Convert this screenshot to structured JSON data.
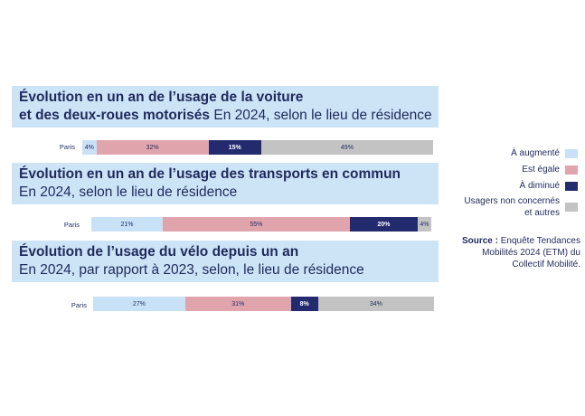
{
  "colors": {
    "augmente": "#c8e1f6",
    "egale": "#e0a4ad",
    "diminue": "#232b6e",
    "non_concernes": "#c3c3c3",
    "title_band": "#cde3f6",
    "text": "#1f2a5c"
  },
  "sections": [
    {
      "title_bold_1": "Évolution en un an de l’usage de la voiture",
      "title_bold_2": "et des deux-roues motorisés",
      "title_normal_2": " En 2024, selon le lieu de résidence"
    },
    {
      "title_bold_1": "Évolution en un an de l’usage des transports en commun",
      "title_normal_2": "En 2024, selon le lieu de résidence"
    },
    {
      "title_bold_1": "Évolution de l’usage du vélo depuis un an",
      "title_normal_2": "En 2024, par rapport à 2023, selon, le lieu de résidence"
    }
  ],
  "chart_data": [
    {
      "type": "bar",
      "stacked": true,
      "orientation": "horizontal",
      "categories": [
        "Paris"
      ],
      "series": [
        {
          "name": "À augmenté",
          "values": [
            4
          ],
          "label": "4%"
        },
        {
          "name": "Est égale",
          "values": [
            32
          ],
          "label": "32%"
        },
        {
          "name": "À diminué",
          "values": [
            15
          ],
          "label": "15%"
        },
        {
          "name": "Usagers non concernés et autres",
          "values": [
            49
          ],
          "label": "49%"
        }
      ]
    },
    {
      "type": "bar",
      "stacked": true,
      "orientation": "horizontal",
      "categories": [
        "Paris"
      ],
      "series": [
        {
          "name": "À augmenté",
          "values": [
            21
          ],
          "label": "21%"
        },
        {
          "name": "Est égale",
          "values": [
            55
          ],
          "label": "55%"
        },
        {
          "name": "À diminué",
          "values": [
            20
          ],
          "label": "20%"
        },
        {
          "name": "Usagers non concernés et autres",
          "values": [
            4
          ],
          "label": "4%"
        }
      ]
    },
    {
      "type": "bar",
      "stacked": true,
      "orientation": "horizontal",
      "categories": [
        "Paris"
      ],
      "series": [
        {
          "name": "À augmenté",
          "values": [
            27
          ],
          "label": "27%"
        },
        {
          "name": "Est égale",
          "values": [
            31
          ],
          "label": "31%"
        },
        {
          "name": "À diminué",
          "values": [
            8
          ],
          "label": "8%"
        },
        {
          "name": "Usagers non concernés et autres",
          "values": [
            34
          ],
          "label": "34%"
        }
      ]
    }
  ],
  "legend": [
    {
      "label": "À augmenté",
      "color": "#c8e1f6"
    },
    {
      "label": "Est égale",
      "color": "#e0a4ad"
    },
    {
      "label": "À diminué",
      "color": "#232b6e"
    },
    {
      "label": "Usagers non concernés et autres",
      "color": "#c3c3c3"
    }
  ],
  "source": {
    "label": "Source :",
    "text": " Enquête Tendances Mobilités 2024 (ETM) du Collectif Mobilité."
  }
}
